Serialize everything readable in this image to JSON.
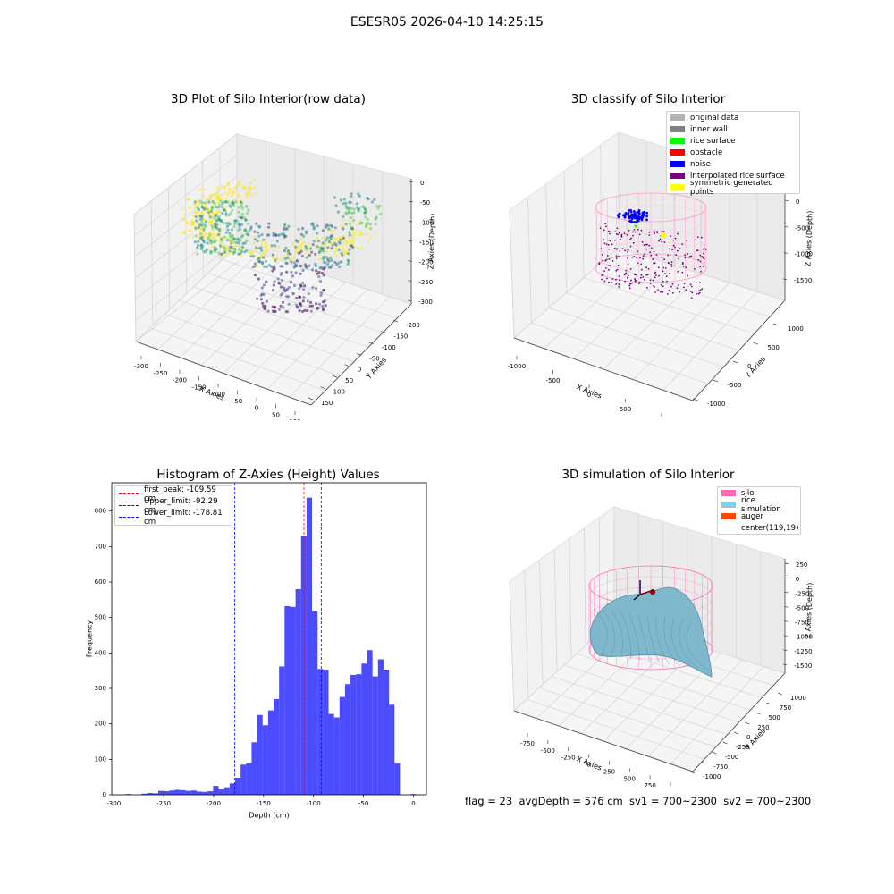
{
  "suptitle": "ESESR05 2026-04-10 14:25:15",
  "footer": "flag = 23  avgDepth = 576 cm  sv1 = 700~2300  sv2 = 700~2300",
  "panels": {
    "raw": {
      "title": "3D Plot of Silo Interior(row data)",
      "xlabel": "X Axies",
      "ylabel": "Y Axies",
      "zlabel": "Z Axies (Depth)",
      "xticks": [
        "-300",
        "-250",
        "-200",
        "-150",
        "-100",
        "-50",
        "0",
        "50",
        "100"
      ],
      "yticks": [
        "-200",
        "-150",
        "-100",
        "-50",
        "0",
        "50",
        "100",
        "150"
      ],
      "zticks": [
        "0",
        "-50",
        "-100",
        "-150",
        "-200",
        "-250",
        "-300"
      ],
      "colormap": [
        "#440154",
        "#3b528b",
        "#21918c",
        "#5ec962",
        "#fde725"
      ]
    },
    "classify": {
      "title": "3D classify of Silo Interior",
      "xlabel": "X Axies",
      "ylabel": "Y Axies",
      "zlabel": "Z Axies (Depth)",
      "xticks": [
        "-1000",
        "-500",
        "0",
        "500",
        "1000"
      ],
      "yticks": [
        "-1000",
        "-500",
        "0",
        "500",
        "1000"
      ],
      "zticks": [
        "0",
        "-500",
        "-1000",
        "-1500"
      ],
      "legend": [
        {
          "label": "original data",
          "color": "#b3b3b3"
        },
        {
          "label": "inner wall",
          "color": "#808080"
        },
        {
          "label": "rice surface",
          "color": "#00ff00"
        },
        {
          "label": "obstacle",
          "color": "#ff0000"
        },
        {
          "label": "noise",
          "color": "#0000ff"
        },
        {
          "label": "interpolated rice surface",
          "color": "#800080"
        },
        {
          "label": "symmetric generated points",
          "color": "#ffff00"
        }
      ]
    },
    "simulation": {
      "title": "3D simulation of Silo Interior",
      "xlabel": "X Axies",
      "ylabel": "Y Axies",
      "zlabel": "Z Axies (Depth)",
      "xticks": [
        "-750",
        "-500",
        "-250",
        "0",
        "250",
        "500",
        "750",
        "1000"
      ],
      "yticks": [
        "-1000",
        "-750",
        "-500",
        "-250",
        "0",
        "250",
        "500",
        "750",
        "1000"
      ],
      "zticks": [
        "250",
        "0",
        "-250",
        "-500",
        "-750",
        "-1000",
        "-1250",
        "-1500"
      ],
      "legend": [
        {
          "label": "silo",
          "color": "#ff69b4"
        },
        {
          "label": "rice simulation",
          "color": "#87ceeb"
        },
        {
          "label": "auger",
          "color": "#ff4500"
        },
        {
          "label": "center(119,19)",
          "color": ""
        }
      ]
    }
  },
  "chart_data": {
    "type": "bar",
    "title": "Histogram of Z-Axies (Height) Values",
    "xlabel": "Depth (cm)",
    "ylabel": "Frequency",
    "xlim": [
      -302,
      13
    ],
    "ylim": [
      0,
      880
    ],
    "xticks": [
      -300,
      -250,
      -200,
      -150,
      -100,
      -50,
      0
    ],
    "yticks": [
      0,
      100,
      200,
      300,
      400,
      500,
      600,
      700,
      800
    ],
    "bar_color": "#0000ff",
    "bin_width": 5.5,
    "bins": [
      {
        "x": -288.0,
        "count": 2
      },
      {
        "x": -272.0,
        "count": 3
      },
      {
        "x": -266.5,
        "count": 5
      },
      {
        "x": -261.0,
        "count": 4
      },
      {
        "x": -255.5,
        "count": 11
      },
      {
        "x": -250.0,
        "count": 10
      },
      {
        "x": -244.5,
        "count": 12
      },
      {
        "x": -239.0,
        "count": 14
      },
      {
        "x": -233.5,
        "count": 13
      },
      {
        "x": -228.0,
        "count": 11
      },
      {
        "x": -222.5,
        "count": 12
      },
      {
        "x": -217.0,
        "count": 9
      },
      {
        "x": -211.5,
        "count": 8
      },
      {
        "x": -206.0,
        "count": 10
      },
      {
        "x": -200.5,
        "count": 25
      },
      {
        "x": -195.0,
        "count": 15
      },
      {
        "x": -189.5,
        "count": 21
      },
      {
        "x": -184.0,
        "count": 32
      },
      {
        "x": -178.5,
        "count": 48
      },
      {
        "x": -173.0,
        "count": 85
      },
      {
        "x": -167.5,
        "count": 90
      },
      {
        "x": -162.0,
        "count": 148
      },
      {
        "x": -156.5,
        "count": 225
      },
      {
        "x": -151.0,
        "count": 196
      },
      {
        "x": -145.5,
        "count": 238
      },
      {
        "x": -140.0,
        "count": 270
      },
      {
        "x": -134.5,
        "count": 362
      },
      {
        "x": -129.0,
        "count": 532
      },
      {
        "x": -123.5,
        "count": 530
      },
      {
        "x": -118.0,
        "count": 580
      },
      {
        "x": -112.5,
        "count": 730
      },
      {
        "x": -107.0,
        "count": 838
      },
      {
        "x": -101.5,
        "count": 518
      },
      {
        "x": -96.0,
        "count": 355
      },
      {
        "x": -90.5,
        "count": 353
      },
      {
        "x": -85.0,
        "count": 228
      },
      {
        "x": -79.5,
        "count": 218
      },
      {
        "x": -74.0,
        "count": 276
      },
      {
        "x": -68.5,
        "count": 312
      },
      {
        "x": -63.0,
        "count": 338
      },
      {
        "x": -57.5,
        "count": 340
      },
      {
        "x": -52.0,
        "count": 370
      },
      {
        "x": -46.5,
        "count": 408
      },
      {
        "x": -41.0,
        "count": 334
      },
      {
        "x": -35.5,
        "count": 382
      },
      {
        "x": -30.0,
        "count": 353
      },
      {
        "x": -24.5,
        "count": 254
      },
      {
        "x": -19.0,
        "count": 88
      },
      {
        "x": -3.0,
        "count": 2
      }
    ],
    "reference_lines": [
      {
        "label": "first_peak: -109.59 cm",
        "x": -109.59,
        "color": "#ff0000"
      },
      {
        "label": "Upper_limit: -92.29 cm",
        "x": -92.29,
        "color": "#0000ff"
      },
      {
        "label": "Lower_limit: -178.81 cm",
        "x": -178.81,
        "color": "#0000ff"
      }
    ],
    "legend_position": "upper-left"
  }
}
